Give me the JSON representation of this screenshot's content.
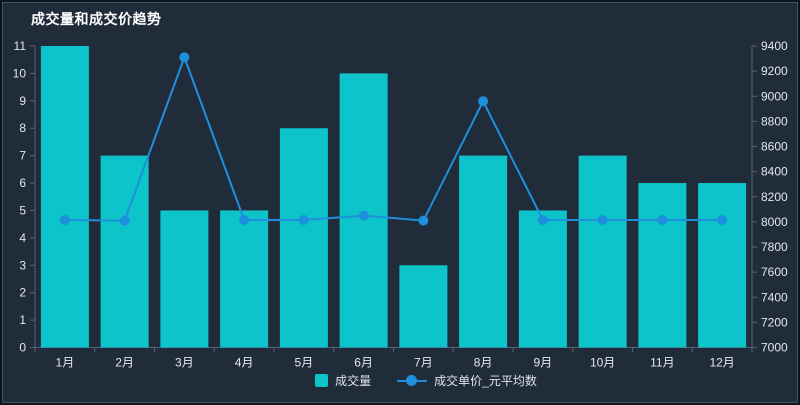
{
  "title": "成交量和成交价趋势",
  "colors": {
    "background": "#212c3b",
    "panel_border": "#3f5564",
    "bar": "#0cc4ca",
    "line": "#1e8fdc",
    "axis_line": "#55637a",
    "tick_label": "#e2e7ec",
    "title_text": "#ffffff",
    "legend_text": "#dfe5ea"
  },
  "chart_data": {
    "type": "bar",
    "title": "成交量和成交价趋势",
    "categories": [
      "1月",
      "2月",
      "3月",
      "4月",
      "5月",
      "6月",
      "7月",
      "8月",
      "9月",
      "10月",
      "11月",
      "12月"
    ],
    "series": [
      {
        "name": "成交量",
        "type": "bar",
        "axis": "left",
        "values": [
          11,
          7,
          5,
          5,
          8,
          10,
          3,
          7,
          5,
          7,
          6,
          6
        ]
      },
      {
        "name": "成交单价_元平均数",
        "type": "line",
        "axis": "right",
        "values": [
          8015,
          8010,
          9310,
          8015,
          8015,
          8050,
          8010,
          8960,
          8015,
          8015,
          8015,
          8015
        ]
      }
    ],
    "left_axis": {
      "min": 0,
      "max": 11,
      "step": 1
    },
    "right_axis": {
      "min": 7000,
      "max": 9400,
      "step": 200
    },
    "grid": false,
    "legend_position": "bottom"
  }
}
